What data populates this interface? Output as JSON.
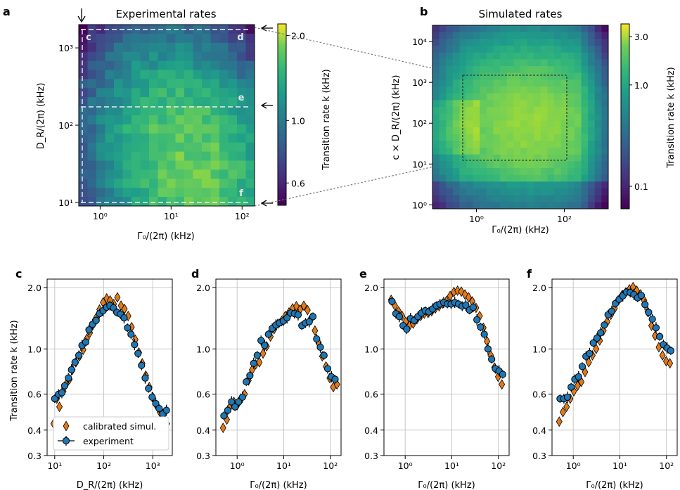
{
  "panel_letters": {
    "a": "a",
    "b": "b",
    "c": "c",
    "d": "d",
    "e": "e",
    "f": "f"
  },
  "colors": {
    "exp": "#1f77b4",
    "sim": "#e07b1a",
    "grid": "#c8c8c8"
  },
  "heatmap_a": {
    "title": "Experimental rates",
    "xlabel": "Γ₀/(2π) (kHz)",
    "ylabel": "D_R/(2π) (kHz)",
    "cbar_label": "Transition rate k (kHz)",
    "cbar_ticks": [
      {
        "v": 2.0,
        "label": "2.0"
      },
      {
        "v": 1.0,
        "label": "1.0"
      },
      {
        "v": 0.6,
        "label": "0.6"
      }
    ],
    "cbar_range": [
      0.5,
      2.2
    ],
    "x_ticks": [
      {
        "v": 1,
        "label": "10⁰"
      },
      {
        "v": 10,
        "label": "10¹"
      },
      {
        "v": 100,
        "label": "10²"
      }
    ],
    "y_ticks": [
      {
        "v": 10,
        "label": "10¹"
      },
      {
        "v": 100,
        "label": "10²"
      },
      {
        "v": 1000,
        "label": "10³"
      }
    ],
    "xlim": [
      0.5,
      150
    ],
    "ylim": [
      9,
      2000
    ],
    "cut_labels": [
      "c",
      "d",
      "e",
      "f"
    ]
  },
  "heatmap_b": {
    "title": "Simulated rates",
    "xlabel": "Γ₀/(2π) (kHz)",
    "ylabel": "c × D_R/(2π) (kHz)",
    "cbar_label": "Transition rate k (kHz)",
    "cbar_ticks": [
      {
        "v": 3.0,
        "label": "3.0"
      },
      {
        "v": 1.0,
        "label": "1.0"
      },
      {
        "v": 0.1,
        "label": "0.1"
      }
    ],
    "cbar_range": [
      0.06,
      4.0
    ],
    "x_ticks": [
      {
        "v": 1,
        "label": "10⁰"
      },
      {
        "v": 100,
        "label": "10²"
      }
    ],
    "y_ticks": [
      {
        "v": 1,
        "label": "10⁰"
      },
      {
        "v": 10,
        "label": "10¹"
      },
      {
        "v": 100,
        "label": "10²"
      },
      {
        "v": 1000,
        "label": "10³"
      },
      {
        "v": 10000,
        "label": "10⁴"
      }
    ],
    "xlim": [
      0.1,
      1000
    ],
    "ylim": [
      0.8,
      25000
    ]
  },
  "line_axes": {
    "ylabel": "Transition rate k (kHz)",
    "ylim": [
      0.3,
      2.2
    ],
    "y_ticks": [
      {
        "v": 0.3,
        "label": "0.3"
      },
      {
        "v": 0.4,
        "label": "0.4"
      },
      {
        "v": 0.6,
        "label": "0.6"
      },
      {
        "v": 1.0,
        "label": "1.0"
      },
      {
        "v": 2.0,
        "label": "2.0"
      }
    ],
    "legend": {
      "sim": "calibrated simul.",
      "exp": "experiment"
    }
  },
  "chart_data": [
    {
      "type": "heatmap",
      "title": "Experimental rates",
      "xlabel": "Γ₀/(2π) (kHz)",
      "ylabel": "D_R/(2π) (kHz)",
      "colorbar": "Transition rate k (kHz)",
      "x_scale": "log",
      "y_scale": "log",
      "xlim": [
        0.5,
        150
      ],
      "ylim": [
        9,
        2000
      ],
      "note": "peak rates ~2.0 kHz near Γ₀≈20 kHz, D_R≈30 kHz; rates ~0.5 kHz at low Γ₀ and high D_R"
    },
    {
      "type": "heatmap",
      "title": "Simulated rates",
      "xlabel": "Γ₀/(2π) (kHz)",
      "ylabel": "c × D_R/(2π) (kHz)",
      "colorbar": "Transition rate k (kHz)",
      "x_scale": "log",
      "y_scale": "log",
      "xlim": [
        0.1,
        1000
      ],
      "ylim": [
        0.8,
        25000
      ]
    },
    {
      "type": "scatter",
      "panel": "c",
      "xlabel": "D_R/(2π) (kHz)",
      "ylabel": "Transition rate k (kHz)",
      "x_scale": "log",
      "y_scale": "log",
      "xlim": [
        7,
        2500
      ],
      "x_ticks": [
        {
          "v": 10,
          "label": "10¹"
        },
        {
          "v": 100,
          "label": "10²"
        },
        {
          "v": 1000,
          "label": "10³"
        }
      ],
      "series": [
        {
          "name": "calibrated simul.",
          "x": [
            9.5,
            11,
            12.5,
            15,
            17,
            20,
            23,
            27,
            32,
            38,
            45,
            52,
            60,
            70,
            82,
            97,
            115,
            135,
            160,
            190,
            225,
            265,
            315,
            370,
            440,
            520,
            610,
            720,
            850,
            1000,
            1180,
            1400,
            1650,
            1950
          ],
          "y": [
            0.43,
            0.57,
            0.52,
            0.62,
            0.67,
            0.71,
            0.79,
            0.86,
            0.92,
            0.99,
            1.12,
            1.2,
            1.31,
            1.42,
            1.56,
            1.69,
            1.77,
            1.73,
            1.66,
            1.79,
            1.63,
            1.57,
            1.45,
            1.28,
            1.11,
            0.96,
            0.85,
            0.74,
            0.65,
            0.58,
            0.53,
            0.49,
            0.46,
            0.43
          ]
        },
        {
          "name": "experiment",
          "x": [
            10,
            12,
            14,
            16,
            19,
            22,
            26,
            31,
            36,
            43,
            50,
            59,
            70,
            82,
            97,
            114,
            134,
            158,
            186,
            220,
            260,
            305,
            360,
            425,
            500,
            590,
            700,
            820,
            970,
            1150,
            1350,
            1600,
            1900
          ],
          "y": [
            0.57,
            0.6,
            0.61,
            0.66,
            0.72,
            0.79,
            0.86,
            0.93,
            1.04,
            1.08,
            1.24,
            1.32,
            1.38,
            1.49,
            1.54,
            1.6,
            1.63,
            1.59,
            1.51,
            1.48,
            1.42,
            1.27,
            1.18,
            1.05,
            0.95,
            0.83,
            0.72,
            0.64,
            0.58,
            0.54,
            0.51,
            0.48,
            0.5
          ]
        }
      ]
    },
    {
      "type": "scatter",
      "panel": "d",
      "xlabel": "Γ₀/(2π) (kHz)",
      "ylabel": "Transition rate k (kHz)",
      "x_scale": "log",
      "y_scale": "log",
      "xlim": [
        0.35,
        170
      ],
      "x_ticks": [
        {
          "v": 1,
          "label": "10⁰"
        },
        {
          "v": 10,
          "label": "10¹"
        },
        {
          "v": 100,
          "label": "10²"
        }
      ],
      "series": [
        {
          "name": "calibrated simul.",
          "x": [
            0.5,
            0.6,
            0.7,
            0.85,
            1.0,
            1.2,
            1.45,
            1.75,
            2.1,
            2.5,
            3.0,
            3.6,
            4.3,
            5.2,
            6.2,
            7.5,
            9,
            10.8,
            13,
            15.5,
            18.7,
            22.4,
            27,
            32.4,
            38.9,
            46.7,
            56,
            67.2,
            80.7,
            96.8,
            116,
            139
          ],
          "y": [
            0.41,
            0.45,
            0.52,
            0.55,
            0.53,
            0.57,
            0.6,
            0.7,
            0.79,
            0.84,
            0.86,
            0.95,
            1.03,
            1.15,
            1.25,
            1.33,
            1.37,
            1.45,
            1.51,
            1.58,
            1.62,
            1.56,
            1.63,
            1.55,
            1.42,
            1.23,
            1.07,
            0.92,
            0.82,
            0.72,
            0.65,
            0.67
          ]
        },
        {
          "name": "experiment",
          "x": [
            0.52,
            0.63,
            0.76,
            0.9,
            1.08,
            1.3,
            1.57,
            1.88,
            2.27,
            2.7,
            3.26,
            3.9,
            4.7,
            5.65,
            6.8,
            8.1,
            9.8,
            11.8,
            14.1,
            17,
            20.4,
            24.5,
            29.4,
            35.3,
            42.4,
            50.9,
            61,
            73.2,
            87.9,
            105.5,
            126.6
          ],
          "y": [
            0.47,
            0.5,
            0.55,
            0.52,
            0.55,
            0.58,
            0.69,
            0.74,
            0.85,
            0.93,
            1.1,
            1.04,
            1.18,
            1.26,
            1.31,
            1.34,
            1.37,
            1.42,
            1.5,
            1.49,
            1.47,
            1.3,
            1.34,
            1.36,
            1.44,
            1.12,
            1.02,
            0.93,
            0.8,
            0.73,
            0.71
          ]
        }
      ]
    },
    {
      "type": "scatter",
      "panel": "e",
      "xlabel": "Γ₀/(2π) (kHz)",
      "ylabel": "Transition rate k (kHz)",
      "x_scale": "log",
      "y_scale": "log",
      "xlim": [
        0.35,
        170
      ],
      "x_ticks": [
        {
          "v": 1,
          "label": "10⁰"
        },
        {
          "v": 10,
          "label": "10¹"
        },
        {
          "v": 100,
          "label": "10²"
        }
      ],
      "series": [
        {
          "name": "calibrated simul.",
          "x": [
            0.5,
            0.6,
            0.72,
            0.86,
            1.03,
            1.24,
            1.49,
            1.79,
            2.15,
            2.58,
            3.1,
            3.7,
            4.45,
            5.35,
            6.4,
            7.7,
            9.2,
            11.1,
            13.3,
            16,
            19.2,
            23,
            27.6,
            33.1,
            39.7,
            47.7,
            57.2,
            68.6,
            82.3,
            98.8,
            118.6
          ],
          "y": [
            1.74,
            1.63,
            1.53,
            1.45,
            1.36,
            1.3,
            1.33,
            1.4,
            1.45,
            1.49,
            1.5,
            1.53,
            1.58,
            1.62,
            1.67,
            1.72,
            1.82,
            1.9,
            1.93,
            1.91,
            1.85,
            1.79,
            1.71,
            1.59,
            1.45,
            1.27,
            1.09,
            0.93,
            0.81,
            0.73,
            0.67
          ]
        },
        {
          "name": "experiment",
          "x": [
            0.52,
            0.63,
            0.75,
            0.9,
            1.08,
            1.3,
            1.56,
            1.87,
            2.24,
            2.69,
            3.23,
            3.88,
            4.65,
            5.58,
            6.7,
            8.04,
            9.65,
            11.6,
            13.9,
            16.7,
            20,
            24,
            28.8,
            34.6,
            41.5,
            49.8,
            59.8,
            71.7,
            86.1,
            103.3,
            124
          ],
          "y": [
            1.71,
            1.49,
            1.44,
            1.3,
            1.25,
            1.41,
            1.38,
            1.44,
            1.5,
            1.54,
            1.52,
            1.57,
            1.63,
            1.66,
            1.69,
            1.66,
            1.66,
            1.69,
            1.66,
            1.62,
            1.64,
            1.55,
            1.6,
            1.39,
            1.28,
            1.18,
            1.0,
            0.89,
            0.8,
            0.78,
            0.75
          ]
        }
      ]
    },
    {
      "type": "scatter",
      "panel": "f",
      "xlabel": "Γ₀/(2π) (kHz)",
      "ylabel": "Transition rate k (kHz)",
      "x_scale": "log",
      "y_scale": "log",
      "xlim": [
        0.35,
        170
      ],
      "x_ticks": [
        {
          "v": 1,
          "label": "10⁰"
        },
        {
          "v": 10,
          "label": "10¹"
        },
        {
          "v": 100,
          "label": "10²"
        }
      ],
      "series": [
        {
          "name": "calibrated simul.",
          "x": [
            0.5,
            0.6,
            0.72,
            0.86,
            1.03,
            1.24,
            1.49,
            1.79,
            2.15,
            2.58,
            3.1,
            3.7,
            4.45,
            5.35,
            6.4,
            7.7,
            9.2,
            11.1,
            13.3,
            16,
            19.2,
            23,
            27.6,
            33.1,
            39.7,
            47.7,
            57.2,
            68.6,
            82.3,
            98.8,
            118.6
          ],
          "y": [
            0.44,
            0.49,
            0.52,
            0.57,
            0.62,
            0.66,
            0.69,
            0.77,
            0.86,
            0.93,
            1.0,
            1.1,
            1.23,
            1.36,
            1.47,
            1.58,
            1.73,
            1.83,
            1.89,
            1.96,
            2.01,
            1.93,
            1.85,
            1.73,
            1.52,
            1.3,
            1.16,
            1.02,
            0.93,
            0.87,
            0.85
          ]
        },
        {
          "name": "experiment",
          "x": [
            0.52,
            0.63,
            0.75,
            0.9,
            1.08,
            1.3,
            1.56,
            1.87,
            2.24,
            2.69,
            3.23,
            3.88,
            4.65,
            5.58,
            6.7,
            8.04,
            9.65,
            11.6,
            13.9,
            16.7,
            20,
            24,
            28.8,
            34.6,
            41.5,
            49.8,
            59.8,
            71.7,
            86.1,
            103.3,
            124
          ],
          "y": [
            0.57,
            0.57,
            0.58,
            0.65,
            0.71,
            0.73,
            0.82,
            0.92,
            0.95,
            1.07,
            1.13,
            1.2,
            1.31,
            1.47,
            1.53,
            1.67,
            1.75,
            1.82,
            1.9,
            1.89,
            1.85,
            1.78,
            1.83,
            1.65,
            1.51,
            1.4,
            1.27,
            1.15,
            1.05,
            1.01,
            0.98
          ]
        }
      ]
    }
  ]
}
